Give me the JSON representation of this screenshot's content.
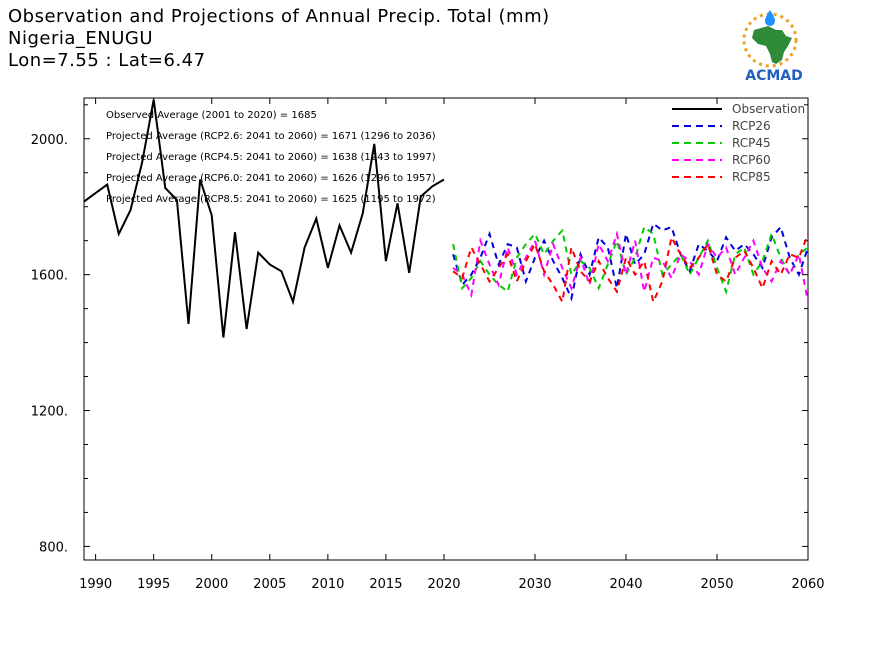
{
  "header": {
    "title_line1": "Observation and Projections of Annual Precip. Total (mm)",
    "title_line2": "Nigeria_ENUGU",
    "title_line3": "Lon=7.55 : Lat=6.47"
  },
  "logo": {
    "text": "ACMAD",
    "colors": {
      "africa": "#2e8b3a",
      "drop": "#1e90ff",
      "sun": "#f0a020",
      "text": "#1f5fbf"
    }
  },
  "annotations": [
    "Observed Average (2001 to 2020) = 1685",
    "Projected Average (RCP2.6: 2041 to 2060) = 1671 (1296 to 2036)",
    "Projected Average (RCP4.5: 2041 to 2060) = 1638 (1243 to 1997)",
    "Projected Average (RCP6.0: 2041 to 2060) = 1626 (1296 to 1957)",
    "Projected Average (RCP8.5: 2041 to 2060) = 1625 (1195 to 1972)"
  ],
  "chart_data": {
    "type": "line",
    "xlim": [
      1989,
      2060
    ],
    "ylim": [
      760,
      2120
    ],
    "yticks": [
      800,
      1200,
      1600,
      2000
    ],
    "ytick_labels": [
      "800.",
      "1200.",
      "1600.",
      "2000."
    ],
    "xticks_obs": [
      1990,
      1995,
      2000,
      2005,
      2010,
      2015,
      2020
    ],
    "xticks_proj": [
      2030,
      2040,
      2050,
      2060
    ],
    "grid": false,
    "legend_position": "top-right",
    "series": [
      {
        "name": "Observation",
        "color": "#000000",
        "dashed": false,
        "x": [
          1989,
          1990,
          1991,
          1992,
          1993,
          1994,
          1995,
          1996,
          1997,
          1998,
          1999,
          2000,
          2001,
          2002,
          2003,
          2004,
          2005,
          2006,
          2007,
          2008,
          2009,
          2010,
          2011,
          2012,
          2013,
          2014,
          2015,
          2016,
          2017,
          2018,
          2019,
          2020
        ],
        "values": [
          1815,
          1840,
          1865,
          1720,
          1790,
          1930,
          2115,
          1855,
          1820,
          1455,
          1880,
          1775,
          1415,
          1725,
          1440,
          1665,
          1630,
          1610,
          1520,
          1680,
          1765,
          1620,
          1745,
          1665,
          1780,
          1985,
          1640,
          1810,
          1605,
          1830,
          1860,
          1880
        ]
      },
      {
        "name": "RCP26",
        "color": "#0000dd",
        "dashed": true,
        "x_start": 2021,
        "values": [
          1660,
          1570,
          1600,
          1650,
          1720,
          1630,
          1690,
          1680,
          1580,
          1650,
          1700,
          1640,
          1590,
          1530,
          1660,
          1600,
          1710,
          1680,
          1560,
          1720,
          1630,
          1660,
          1750,
          1730,
          1740,
          1660,
          1610,
          1690,
          1670,
          1640,
          1710,
          1670,
          1690,
          1660,
          1620,
          1710,
          1740,
          1650,
          1600,
          1680
        ]
      },
      {
        "name": "RCP45",
        "color": "#00cc00",
        "dashed": true,
        "x_start": 2021,
        "values": [
          1690,
          1560,
          1590,
          1640,
          1600,
          1570,
          1550,
          1650,
          1690,
          1720,
          1660,
          1700,
          1730,
          1600,
          1640,
          1620,
          1560,
          1630,
          1700,
          1600,
          1650,
          1740,
          1720,
          1600,
          1630,
          1660,
          1600,
          1650,
          1700,
          1620,
          1550,
          1660,
          1680,
          1600,
          1640,
          1720,
          1650,
          1600,
          1660,
          1680
        ]
      },
      {
        "name": "RCP60",
        "color": "#ff00ff",
        "dashed": true,
        "x_start": 2021,
        "values": [
          1620,
          1600,
          1540,
          1700,
          1630,
          1570,
          1680,
          1600,
          1650,
          1700,
          1600,
          1690,
          1620,
          1560,
          1650,
          1570,
          1690,
          1640,
          1720,
          1600,
          1700,
          1550,
          1650,
          1640,
          1590,
          1660,
          1640,
          1600,
          1690,
          1650,
          1680,
          1600,
          1650,
          1700,
          1620,
          1580,
          1640,
          1600,
          1660,
          1520
        ]
      },
      {
        "name": "RCP85",
        "color": "#ff0000",
        "dashed": true,
        "x_start": 2021,
        "values": [
          1610,
          1590,
          1680,
          1630,
          1580,
          1620,
          1660,
          1580,
          1640,
          1690,
          1610,
          1570,
          1520,
          1680,
          1610,
          1580,
          1640,
          1590,
          1550,
          1650,
          1600,
          1640,
          1520,
          1580,
          1710,
          1660,
          1620,
          1650,
          1690,
          1600,
          1580,
          1650,
          1670,
          1620,
          1560,
          1640,
          1600,
          1660,
          1650,
          1720
        ]
      }
    ]
  }
}
